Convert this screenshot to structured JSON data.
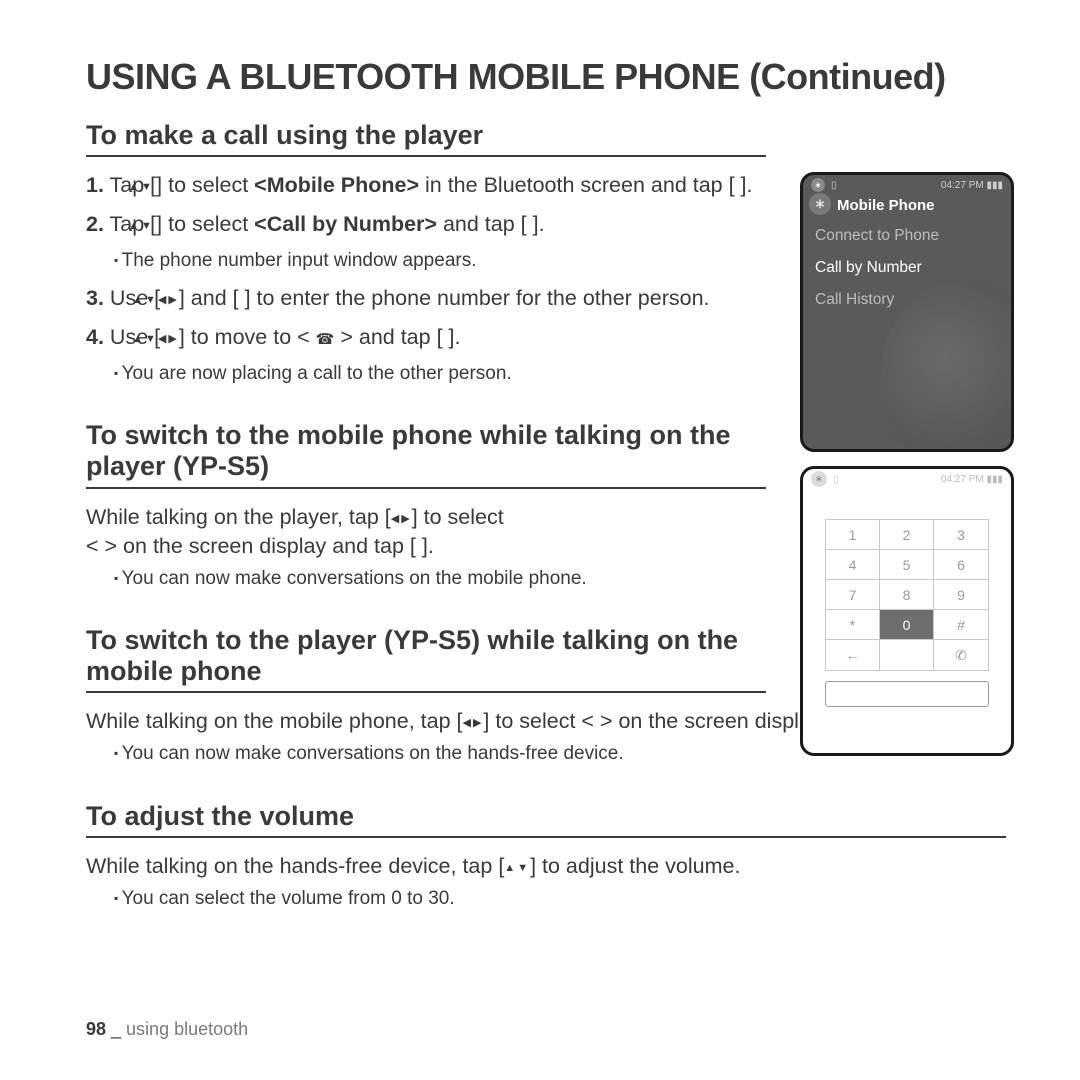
{
  "page": {
    "title": "USING A BLUETOOTH MOBILE PHONE (Continued)",
    "footer_page": "98",
    "footer_sep": " _ ",
    "footer_section": "using bluetooth"
  },
  "s1": {
    "heading": "To make a call using the player",
    "step1_a": "1.",
    "step1_b": "Tap [",
    "step1_c": "] to select ",
    "step1_bold": "<Mobile Phone>",
    "step1_d": " in the Bluetooth screen and tap [     ].",
    "step2_a": "2.",
    "step2_b": "Tap [",
    "step2_c": "] to select ",
    "step2_bold": "<Call by Number>",
    "step2_d": " and tap [     ].",
    "step2_note": "The phone number input window appears.",
    "step3_a": "3.",
    "step3_b": "Use [",
    "step3_c": "] and [     ] to enter the phone number for the other person.",
    "step4_a": "4.",
    "step4_b": "Use [",
    "step4_c": "] to move to < ",
    "step4_d": " > and tap [     ].",
    "step4_note": "You are now placing a call to the other person."
  },
  "s2": {
    "heading": "To switch to the mobile phone while talking on the player (YP-S5)",
    "body_a": "While talking on the player, tap [",
    "body_b": "] to select",
    "body_c": "<      > on the screen display and tap [     ].",
    "note": "You can now make conversations on the mobile phone."
  },
  "s3": {
    "heading": "To switch to the player (YP-S5) while talking on the mobile phone",
    "body_a": "While talking on the mobile phone, tap [",
    "body_b": "] to select <      > on the screen display and tap [     ].",
    "note": "You can now make conversations on the hands-free device."
  },
  "s4": {
    "heading": "To adjust the volume",
    "body_a": "While talking on the hands-free device, tap [",
    "body_b": "] to adjust the volume.",
    "note": "You can select the volume from 0 to 30."
  },
  "device1": {
    "time": "04:27 PM",
    "batt": "▮▮▮",
    "title": "Mobile Phone",
    "item1": "Connect to Phone",
    "item2": "Call by Number",
    "item3": "Call History"
  },
  "device2": {
    "time": "04:27 PM",
    "batt": "▮▮▮",
    "keys": [
      "1",
      "2",
      "3",
      "4",
      "5",
      "6",
      "7",
      "8",
      "9",
      "*",
      "0",
      "#",
      "←",
      "",
      "✆"
    ],
    "selected_index": 10
  }
}
